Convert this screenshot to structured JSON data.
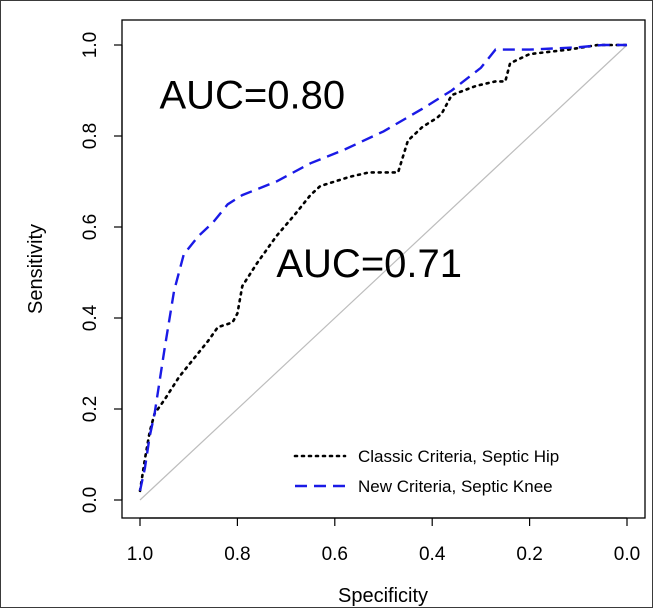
{
  "chart_data": {
    "type": "line",
    "xlabel": "Specificity",
    "ylabel": "Sensitivity",
    "xlim": [
      1.0,
      0.0
    ],
    "ylim": [
      0.0,
      1.0
    ],
    "x_reversed": true,
    "x_ticks": [
      "1.0",
      "0.8",
      "0.6",
      "0.4",
      "0.2",
      "0.0"
    ],
    "y_ticks": [
      "0.0",
      "0.2",
      "0.4",
      "0.6",
      "0.8",
      "1.0"
    ],
    "grid": false,
    "legend_position": "bottom-right",
    "reference_line": {
      "x": [
        1.0,
        0.0
      ],
      "y": [
        0.0,
        1.0
      ],
      "color": "#bdbdbd"
    },
    "series": [
      {
        "name": "Classic Criteria, Septic Hip",
        "style": "dotted",
        "color": "#000000",
        "x": [
          1.0,
          0.99,
          0.98,
          0.97,
          0.95,
          0.92,
          0.89,
          0.86,
          0.84,
          0.81,
          0.8,
          0.79,
          0.76,
          0.72,
          0.68,
          0.65,
          0.63,
          0.6,
          0.57,
          0.53,
          0.48,
          0.47,
          0.45,
          0.42,
          0.39,
          0.38,
          0.36,
          0.31,
          0.27,
          0.25,
          0.24,
          0.2,
          0.12,
          0.06,
          0.0
        ],
        "y": [
          0.02,
          0.09,
          0.15,
          0.19,
          0.22,
          0.27,
          0.31,
          0.35,
          0.38,
          0.39,
          0.41,
          0.47,
          0.52,
          0.58,
          0.63,
          0.67,
          0.69,
          0.7,
          0.71,
          0.72,
          0.72,
          0.72,
          0.79,
          0.82,
          0.84,
          0.85,
          0.89,
          0.91,
          0.92,
          0.92,
          0.96,
          0.98,
          0.99,
          1.0,
          1.0
        ]
      },
      {
        "name": "New Criteria, Septic Knee",
        "style": "dashed",
        "color": "#1a1ae6",
        "x": [
          1.0,
          0.99,
          0.98,
          0.97,
          0.95,
          0.93,
          0.91,
          0.88,
          0.85,
          0.82,
          0.79,
          0.72,
          0.65,
          0.58,
          0.5,
          0.42,
          0.36,
          0.3,
          0.27,
          0.2,
          0.1,
          0.05,
          0.0
        ],
        "y": [
          0.02,
          0.07,
          0.14,
          0.19,
          0.33,
          0.46,
          0.54,
          0.58,
          0.61,
          0.65,
          0.67,
          0.7,
          0.74,
          0.77,
          0.81,
          0.86,
          0.9,
          0.95,
          0.99,
          0.99,
          0.995,
          1.0,
          1.0
        ]
      }
    ],
    "annotations": [
      {
        "text": "AUC=0.80",
        "x": 0.96,
        "y": 0.86
      },
      {
        "text": "AUC=0.71",
        "x": 0.72,
        "y": 0.49
      }
    ]
  }
}
